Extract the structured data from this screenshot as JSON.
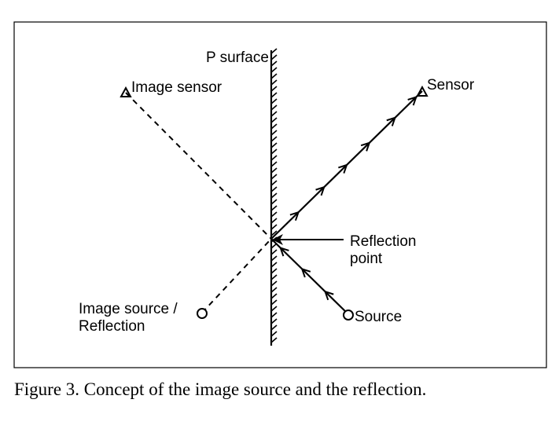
{
  "labels": {
    "surface": "P surface",
    "image_sensor": "Image sensor",
    "sensor": "Sensor",
    "reflection_point_line1": "Reflection",
    "reflection_point_line2": "point",
    "image_source_line1": "Image source /",
    "image_source_line2": "Reflection",
    "source": "Source"
  },
  "caption": "Figure 3. Concept of the image source and the reflection.",
  "colors": {
    "stroke": "#000000",
    "background": "#ffffff"
  }
}
